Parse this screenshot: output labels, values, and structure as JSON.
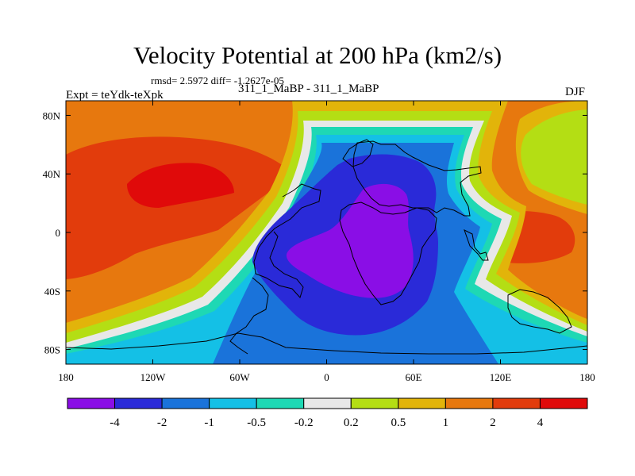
{
  "chart_data": {
    "type": "heatmap",
    "title": "Velocity Potential at 200 hPa (km2/s)",
    "stats_text": "rmsd= 2.5972 diff= -1.2627e-05",
    "left_label": "Expt = teYdk-teXpk",
    "center_label": "311_1_MaBP - 311_1_MaBP",
    "right_label": "DJF",
    "xlabel": "",
    "ylabel": "",
    "xlim": [
      -180,
      180
    ],
    "ylim": [
      -90,
      90
    ],
    "x_ticks": [
      {
        "value": -180,
        "label": "180"
      },
      {
        "value": -120,
        "label": "120W"
      },
      {
        "value": -60,
        "label": "60W"
      },
      {
        "value": 0,
        "label": "0"
      },
      {
        "value": 60,
        "label": "60E"
      },
      {
        "value": 120,
        "label": "120E"
      },
      {
        "value": 180,
        "label": "180"
      }
    ],
    "y_ticks": [
      {
        "value": 80,
        "label": "80N"
      },
      {
        "value": 40,
        "label": "40N"
      },
      {
        "value": 0,
        "label": "0"
      },
      {
        "value": -40,
        "label": "40S"
      },
      {
        "value": -80,
        "label": "80S"
      }
    ],
    "contour_levels": [
      "-4",
      "-2",
      "-1",
      "-0.5",
      "-0.2",
      "0.2",
      "0.5",
      "1",
      "2",
      "4"
    ],
    "colors": [
      "#8a0ee6",
      "#2a2ad8",
      "#1a73da",
      "#14c0e6",
      "#1ed8b4",
      "#e8e8e8",
      "#b4de14",
      "#e2b40a",
      "#e7780e",
      "#e23c0c",
      "#e00a0a"
    ],
    "features": [
      {
        "name": "min-africa",
        "lon": 40,
        "lat": 0,
        "value": -4.5
      },
      {
        "name": "max-pacific",
        "lon": -105,
        "lat": 15,
        "value": 4.5
      },
      {
        "name": "max-east",
        "lon": 150,
        "lat": 0,
        "value": 2.5
      }
    ]
  }
}
